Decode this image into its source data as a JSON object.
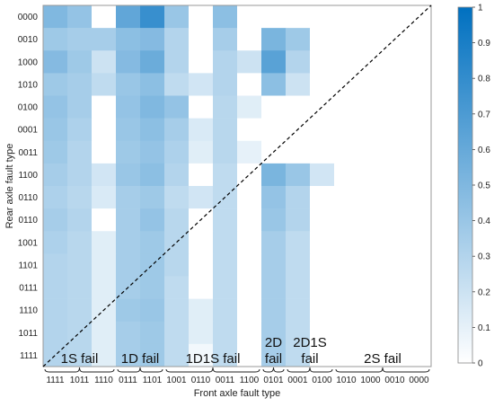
{
  "chart_data": {
    "type": "heatmap",
    "xlabel": "Front axle fault type",
    "ylabel": "Rear axle fault type",
    "x_categories": [
      "1111",
      "1011",
      "1110",
      "0111",
      "1101",
      "1001",
      "0110",
      "0011",
      "1100",
      "0101",
      "0001",
      "0100",
      "1010",
      "1000",
      "0010",
      "0000"
    ],
    "y_categories": [
      "0000",
      "0010",
      "1000",
      "1010",
      "0100",
      "0001",
      "0011",
      "1100",
      "0110",
      "0110",
      "1001",
      "1101",
      "0111",
      "1110",
      "1011",
      "1111"
    ],
    "values": [
      [
        0.5,
        0.42,
        0.0,
        0.62,
        0.78,
        0.4,
        0.0,
        0.45,
        0.0,
        0.0,
        0.0,
        0.0,
        0.0,
        0.0,
        0.0,
        0.0
      ],
      [
        0.38,
        0.35,
        0.35,
        0.45,
        0.48,
        0.3,
        0.0,
        0.35,
        0.0,
        0.52,
        0.38,
        0.0,
        0.0,
        0.0,
        0.0,
        0.0
      ],
      [
        0.48,
        0.38,
        0.2,
        0.48,
        0.58,
        0.3,
        0.0,
        0.3,
        0.2,
        0.65,
        0.3,
        0.0,
        0.0,
        0.0,
        0.0,
        0.0
      ],
      [
        0.38,
        0.35,
        0.25,
        0.4,
        0.45,
        0.25,
        0.18,
        0.3,
        0.0,
        0.45,
        0.2,
        0.0,
        0.0,
        0.0,
        0.0,
        0.0
      ],
      [
        0.42,
        0.35,
        0.0,
        0.42,
        0.5,
        0.42,
        0.0,
        0.28,
        0.12,
        0.0,
        0.0,
        0.0,
        0.0,
        0.0,
        0.0,
        0.0
      ],
      [
        0.4,
        0.32,
        0.0,
        0.4,
        0.45,
        0.35,
        0.15,
        0.28,
        0.0,
        0.0,
        0.0,
        0.0,
        0.0,
        0.0,
        0.0,
        0.0
      ],
      [
        0.38,
        0.3,
        0.0,
        0.38,
        0.42,
        0.32,
        0.12,
        0.28,
        0.1,
        0.0,
        0.0,
        0.0,
        0.0,
        0.0,
        0.0,
        0.0
      ],
      [
        0.35,
        0.3,
        0.18,
        0.4,
        0.45,
        0.3,
        0.0,
        0.25,
        0.0,
        0.52,
        0.4,
        0.18,
        0.0,
        0.0,
        0.0,
        0.0
      ],
      [
        0.32,
        0.28,
        0.15,
        0.35,
        0.38,
        0.25,
        0.18,
        0.25,
        0.0,
        0.42,
        0.3,
        0.0,
        0.0,
        0.0,
        0.0,
        0.0
      ],
      [
        0.35,
        0.3,
        0.0,
        0.35,
        0.42,
        0.28,
        0.0,
        0.25,
        0.0,
        0.4,
        0.3,
        0.0,
        0.0,
        0.0,
        0.0,
        0.0
      ],
      [
        0.32,
        0.28,
        0.12,
        0.35,
        0.38,
        0.28,
        0.0,
        0.25,
        0.0,
        0.35,
        0.25,
        0.0,
        0.0,
        0.0,
        0.0,
        0.0
      ],
      [
        0.3,
        0.28,
        0.12,
        0.35,
        0.38,
        0.28,
        0.0,
        0.25,
        0.0,
        0.35,
        0.25,
        0.0,
        0.0,
        0.0,
        0.0,
        0.0
      ],
      [
        0.3,
        0.28,
        0.12,
        0.35,
        0.38,
        0.25,
        0.0,
        0.25,
        0.0,
        0.35,
        0.25,
        0.0,
        0.0,
        0.0,
        0.0,
        0.0
      ],
      [
        0.3,
        0.28,
        0.12,
        0.38,
        0.4,
        0.25,
        0.12,
        0.25,
        0.0,
        0.35,
        0.25,
        0.0,
        0.0,
        0.0,
        0.0,
        0.0
      ],
      [
        0.3,
        0.28,
        0.12,
        0.35,
        0.38,
        0.25,
        0.12,
        0.25,
        0.0,
        0.35,
        0.25,
        0.0,
        0.0,
        0.0,
        0.0,
        0.0
      ],
      [
        0.3,
        0.28,
        0.12,
        0.35,
        0.38,
        0.25,
        0.05,
        0.25,
        0.0,
        0.35,
        0.25,
        0.0,
        0.0,
        0.0,
        0.0,
        0.0
      ]
    ],
    "vmin": 0,
    "vmax": 1,
    "colorbar_ticks": [
      "0",
      "0.1",
      "0.2",
      "0.3",
      "0.4",
      "0.5",
      "0.6",
      "0.7",
      "0.8",
      "0.9",
      "1"
    ],
    "colormap": {
      "low": "#ffffff",
      "high": "#0070c0"
    },
    "diagonal": {
      "style": "dashed",
      "color": "#000000"
    },
    "groups": [
      {
        "label": "1S fail",
        "from": 0,
        "to": 2
      },
      {
        "label": "1D fail",
        "from": 3,
        "to": 4
      },
      {
        "label": "1D1S fail",
        "from": 5,
        "to": 8
      },
      {
        "label": "2D\nfail",
        "from": 9,
        "to": 9
      },
      {
        "label": "2D1S\nfail",
        "from": 10,
        "to": 11
      },
      {
        "label": "2S fail",
        "from": 12,
        "to": 15
      }
    ]
  }
}
